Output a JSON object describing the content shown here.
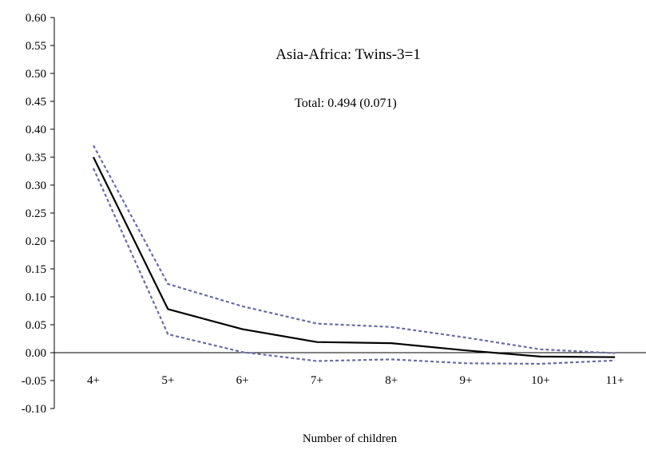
{
  "chart_data": {
    "type": "line",
    "title": "",
    "annotations": [
      "Asia-Africa: Twins-3=1",
      "Total: 0.494 (0.071)"
    ],
    "xlabel": "Number of children",
    "ylabel": "",
    "categories": [
      "4+",
      "5+",
      "6+",
      "7+",
      "8+",
      "9+",
      "10+",
      "11+"
    ],
    "ylim": [
      -0.1,
      0.6
    ],
    "ytick_step": 0.05,
    "yticks": [
      "-0.10",
      "-0.05",
      "0.00",
      "0.05",
      "0.10",
      "0.15",
      "0.20",
      "0.25",
      "0.30",
      "0.35",
      "0.40",
      "0.45",
      "0.50",
      "0.55",
      "0.60"
    ],
    "grid": false,
    "legend": "none",
    "series": [
      {
        "role": "estimate",
        "style": "solid",
        "color": "#000000",
        "values": [
          0.35,
          0.078,
          0.042,
          0.019,
          0.017,
          0.004,
          -0.007,
          -0.008
        ]
      },
      {
        "role": "upper",
        "style": "dashed",
        "color": "#6a6aa8",
        "values": [
          0.371,
          0.123,
          0.083,
          0.052,
          0.046,
          0.027,
          0.006,
          -0.001
        ]
      },
      {
        "role": "lower",
        "style": "dashed",
        "color": "#6a6aa8",
        "values": [
          0.33,
          0.033,
          0.001,
          -0.015,
          -0.012,
          -0.019,
          -0.02,
          -0.014
        ]
      }
    ]
  }
}
